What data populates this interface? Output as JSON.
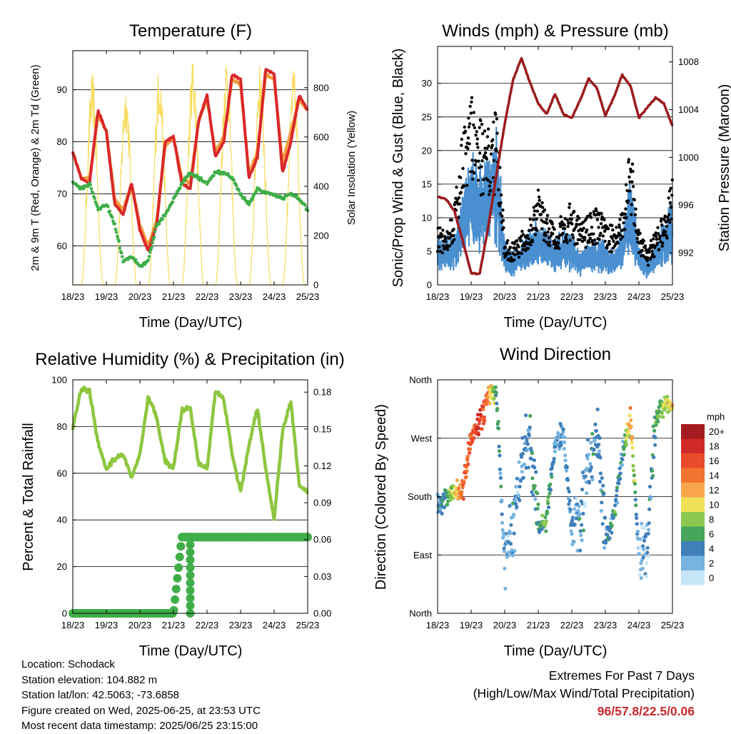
{
  "panels": {
    "temperature": {
      "title": "Temperature (F)",
      "ylabel": "2m & 9m T (Red, Orange) & 2m Td (Green)",
      "y2label": "Solar Insolation (Yellow)",
      "xlabel": "Time (Day/UTC)",
      "yticks": [
        "60",
        "70",
        "80",
        "90"
      ],
      "y2ticks": [
        "0",
        "200",
        "400",
        "600",
        "800"
      ]
    },
    "winds": {
      "title": "Winds (mph) & Pressure (mb)",
      "ylabel": "Sonic/Prop Wind & Gust (Blue, Black)",
      "y2label": "Station Pressure (Maroon)",
      "xlabel": "Time (Day/UTC)",
      "yticks": [
        "0",
        "5",
        "10",
        "15",
        "20",
        "25",
        "30"
      ],
      "y2ticks": [
        "992",
        "996",
        "1000",
        "1004",
        "1008"
      ]
    },
    "humidity": {
      "title": "Relative Humidity (%) & Precipitation (in)",
      "ylabel": "Percent & Total Rainfall",
      "xlabel": "Time (Day/UTC)",
      "yticks": [
        "0",
        "20",
        "40",
        "60",
        "80",
        "100"
      ],
      "y2ticks": [
        "0.00",
        "0.03",
        "0.06",
        "0.09",
        "0.12",
        "0.15",
        "0.18"
      ]
    },
    "direction": {
      "title": "Wind Direction",
      "ylabel": "Direction (Colored By Speed)",
      "xlabel": "Time (Day/UTC)",
      "yticks": [
        "North",
        "East",
        "South",
        "West",
        "North"
      ],
      "colorbar_title": "mph",
      "colorbar_labels": [
        "20+",
        "18",
        "16",
        "14",
        "12",
        "10",
        "8",
        "6",
        "4",
        "2",
        "0"
      ],
      "colorbar_colors": [
        "#a51c20",
        "#cf2a27",
        "#ea4b2a",
        "#f3742f",
        "#f8a54b",
        "#f1e058",
        "#8cc850",
        "#46a55a",
        "#3f7fba",
        "#78b4e0",
        "#c6e6f8"
      ]
    }
  },
  "xticks": [
    "18/23",
    "19/23",
    "20/23",
    "21/23",
    "22/23",
    "23/23",
    "24/23",
    "25/23"
  ],
  "info": {
    "location": "Location: Schodack",
    "elevation": "Station elevation: 104.882 m",
    "latlon": "Station lat/lon: 42.5063; -73.6858",
    "created": "Figure created on Wed, 2025-06-25, at 23:53 UTC",
    "recent": "Most recent data timestamp: 2025/06/25 23:15:00"
  },
  "extremes": {
    "line1": "Extremes For Past 7 Days",
    "line2": "(High/Low/Max Wind/Total Precipitation)",
    "values": "96/57.8/22.5/0.06"
  },
  "colors": {
    "temp_2m": "#d9282a",
    "temp_9m": "#f39a3c",
    "dewpoint": "#3fae49",
    "solar": "#f7dc5c",
    "wind": "#4a90d0",
    "gust": "#000000",
    "pressure": "#9b1b1f",
    "rh": "#8dc63f",
    "precip": "#3fae49"
  },
  "chart_data": [
    {
      "type": "line",
      "title": "Temperature (F)",
      "xlabel": "Time (Day/UTC)",
      "ylabel": "2m & 9m T (Red, Orange) & 2m Td (Green)",
      "y2label": "Solar Insolation (Yellow)",
      "ylim": [
        52.5,
        97.5
      ],
      "y2lim": [
        0,
        950
      ],
      "x_days": [
        0,
        0.25,
        0.5,
        0.75,
        1.0,
        1.25,
        1.5,
        1.75,
        2.0,
        2.25,
        2.5,
        2.75,
        3.0,
        3.25,
        3.5,
        3.75,
        4.0,
        4.25,
        4.5,
        4.75,
        5.0,
        5.25,
        5.5,
        5.75,
        6.0,
        6.25,
        6.5,
        6.75,
        7.0
      ],
      "series": [
        {
          "name": "2m T",
          "values": [
            78,
            73,
            72,
            86,
            82,
            68,
            66,
            72,
            63,
            59,
            64,
            80,
            81,
            72,
            71,
            84,
            89,
            77,
            80,
            93,
            92,
            73,
            77,
            94,
            93,
            74,
            80,
            89,
            86
          ]
        },
        {
          "name": "9m T",
          "values": [
            78,
            73,
            73,
            85,
            82,
            69,
            67,
            72,
            64,
            60,
            65,
            79,
            81,
            73,
            72,
            84,
            88,
            78,
            81,
            92,
            91,
            74,
            78,
            93,
            92,
            76,
            82,
            88,
            86
          ]
        },
        {
          "name": "2m Td",
          "values": [
            72,
            71,
            72,
            67,
            68,
            64,
            57,
            58,
            56,
            57,
            64,
            66,
            69,
            72,
            74,
            73,
            72,
            74,
            74,
            73,
            70,
            68,
            71,
            70,
            70,
            69,
            70,
            69,
            67
          ]
        }
      ],
      "solar_days": [
        19,
        20,
        21,
        22,
        23,
        24,
        25
      ],
      "solar_peaks": [
        860,
        820,
        900,
        930,
        940,
        900,
        880
      ]
    },
    {
      "type": "scatter",
      "title": "Winds (mph) & Pressure (mb)",
      "xlabel": "Time (Day/UTC)",
      "ylabel": "Sonic/Prop Wind & Gust (Blue, Black)",
      "y2label": "Station Pressure (Maroon)",
      "ylim": [
        0,
        35.5
      ],
      "y2lim": [
        989.3,
        1009.3
      ],
      "x_days": [
        0,
        0.25,
        0.5,
        0.75,
        1.0,
        1.25,
        1.5,
        1.75,
        2.0,
        2.25,
        2.5,
        2.75,
        3.0,
        3.25,
        3.5,
        3.75,
        4.0,
        4.25,
        4.5,
        4.75,
        5.0,
        5.25,
        5.5,
        5.75,
        6.0,
        6.25,
        6.5,
        6.75,
        7.0
      ],
      "series": [
        {
          "name": "Sonic/Prop Wind",
          "values": [
            5,
            4,
            5,
            9,
            12,
            11,
            12,
            14,
            4,
            3,
            4,
            5,
            6,
            5,
            4,
            5,
            5,
            3,
            4,
            4,
            4,
            3,
            5,
            10,
            4,
            2,
            4,
            6,
            8
          ]
        },
        {
          "name": "Gust",
          "values": [
            9,
            8,
            12,
            22,
            27,
            24,
            22,
            25,
            7,
            6,
            8,
            10,
            14,
            10,
            9,
            10,
            12,
            9,
            10,
            11,
            10,
            8,
            11,
            20,
            8,
            5,
            8,
            11,
            15
          ]
        },
        {
          "name": "Station Pressure",
          "values": [
            996.7,
            996.5,
            995.5,
            993,
            990.3,
            990.2,
            994,
            998.5,
            1002.8,
            1006.5,
            1008.3,
            1006.3,
            1004.5,
            1003.6,
            1005.3,
            1003.6,
            1003.3,
            1004.8,
            1006.6,
            1005.8,
            1003.5,
            1005,
            1006.9,
            1006,
            1003.3,
            1004.2,
            1005,
            1004.5,
            1002.6
          ]
        }
      ]
    },
    {
      "type": "line",
      "title": "Relative Humidity (%) & Precipitation (in)",
      "xlabel": "Time (Day/UTC)",
      "ylabel": "Percent & Total Rainfall",
      "ylim": [
        0,
        100
      ],
      "y2lim": [
        0,
        0.19
      ],
      "x_days": [
        0,
        0.25,
        0.5,
        0.75,
        1.0,
        1.25,
        1.5,
        1.75,
        2.0,
        2.25,
        2.5,
        2.75,
        3.0,
        3.25,
        3.5,
        3.75,
        4.0,
        4.25,
        4.5,
        4.75,
        5.0,
        5.25,
        5.5,
        5.75,
        6.0,
        6.25,
        6.5,
        6.75,
        7.0
      ],
      "series": [
        {
          "name": "Relative Humidity",
          "values": [
            79,
            96,
            95,
            73,
            62,
            66,
            68,
            58,
            68,
            93,
            84,
            65,
            62,
            87,
            88,
            64,
            62,
            95,
            92,
            68,
            52,
            72,
            88,
            62,
            40,
            78,
            91,
            55,
            52
          ]
        },
        {
          "name": "Total Rainfall",
          "values": [
            0,
            0,
            0,
            0,
            0,
            0,
            0,
            0,
            0,
            0,
            0,
            0,
            0,
            0.062,
            0.062,
            0.062,
            0.062,
            0.062,
            0.062,
            0.062,
            0.062,
            0.062,
            0.062,
            0.062,
            0.062,
            0.062,
            0.062,
            0.062,
            0.062
          ]
        }
      ]
    },
    {
      "type": "scatter",
      "title": "Wind Direction",
      "xlabel": "Time (Day/UTC)",
      "ylabel": "Direction (Colored By Speed)",
      "ylim": [
        0,
        360
      ],
      "x_days": [
        0,
        0.25,
        0.5,
        0.75,
        1.0,
        1.25,
        1.5,
        1.75,
        2.0,
        2.25,
        2.5,
        2.75,
        3.0,
        3.25,
        3.5,
        3.75,
        4.0,
        4.25,
        4.5,
        4.75,
        5.0,
        5.25,
        5.5,
        5.75,
        6.0,
        6.25,
        6.5,
        6.75,
        7.0
      ],
      "direction_deg": [
        165,
        180,
        185,
        190,
        275,
        290,
        335,
        340,
        80,
        140,
        230,
        280,
        130,
        150,
        260,
        280,
        120,
        150,
        220,
        300,
        110,
        150,
        240,
        300,
        90,
        110,
        300,
        320,
        320
      ],
      "speed_mph": [
        3,
        5,
        9,
        15,
        15,
        17,
        13,
        6,
        2,
        3,
        3,
        4,
        5,
        7,
        3,
        3,
        3,
        3,
        3,
        4,
        4,
        5,
        3,
        12,
        2,
        2,
        6,
        8,
        10
      ]
    }
  ]
}
